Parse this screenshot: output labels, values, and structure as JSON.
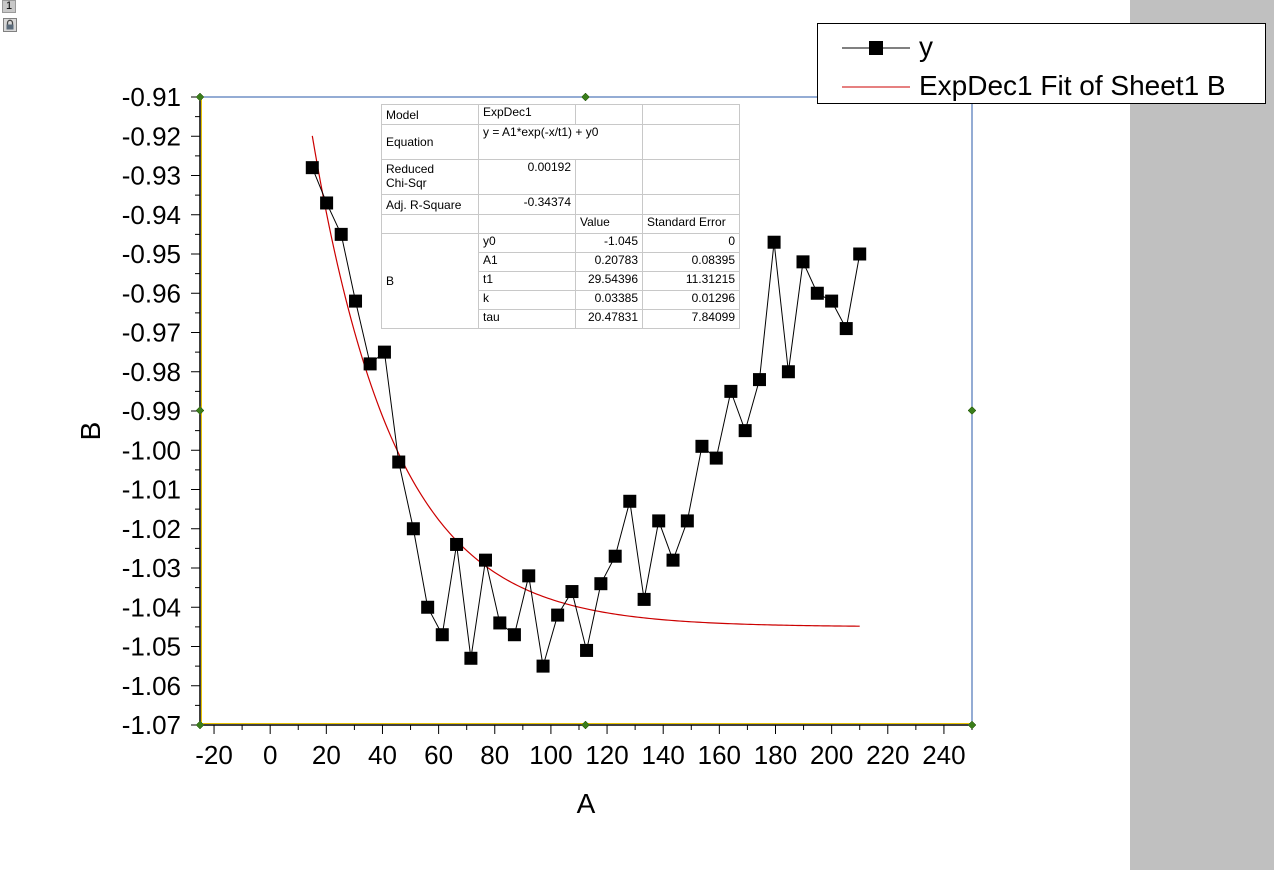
{
  "layer_tab": {
    "label": "1"
  },
  "chart_data": {
    "type": "scatter",
    "xlabel": "A",
    "ylabel": "B",
    "xlim": [
      -25,
      250
    ],
    "ylim": [
      -1.07,
      -0.91
    ],
    "x_ticks": [
      -20,
      0,
      20,
      40,
      60,
      80,
      100,
      120,
      140,
      160,
      180,
      200,
      220,
      240
    ],
    "x_tick_labels": [
      "-20",
      "0",
      "20",
      "40",
      "60",
      "80",
      "100",
      "120",
      "140",
      "160",
      "180",
      "200",
      "220",
      "240"
    ],
    "y_ticks": [
      -0.91,
      -0.92,
      -0.93,
      -0.94,
      -0.95,
      -0.96,
      -0.97,
      -0.98,
      -0.99,
      -1.0,
      -1.01,
      -1.02,
      -1.03,
      -1.04,
      -1.05,
      -1.06,
      -1.07
    ],
    "y_tick_labels": [
      "-0.91",
      "-0.92",
      "-0.93",
      "-0.94",
      "-0.95",
      "-0.96",
      "-0.97",
      "-0.98",
      "-0.99",
      "-1.00",
      "-1.01",
      "-1.02",
      "-1.03",
      "-1.04",
      "-1.05",
      "-1.06",
      "-1.07"
    ],
    "series": [
      {
        "name": "y",
        "type": "line+symbol",
        "color": "#000000",
        "x": [
          15,
          20.1,
          25.3,
          30.4,
          35.6,
          40.7,
          45.8,
          51,
          56.1,
          61.3,
          66.4,
          71.5,
          76.7,
          81.8,
          87,
          92.1,
          97.2,
          102.4,
          107.5,
          112.7,
          117.8,
          122.9,
          128.1,
          133.2,
          138.4,
          143.5,
          148.6,
          153.8,
          158.9,
          164.1,
          169.2,
          174.3,
          179.5,
          184.6,
          189.8,
          194.9,
          200,
          205.2,
          210
        ],
        "y": [
          -0.928,
          -0.937,
          -0.945,
          -0.962,
          -0.978,
          -0.975,
          -1.003,
          -1.02,
          -1.04,
          -1.047,
          -1.024,
          -1.053,
          -1.028,
          -1.044,
          -1.047,
          -1.032,
          -1.055,
          -1.042,
          -1.036,
          -1.051,
          -1.034,
          -1.027,
          -1.013,
          -1.038,
          -1.018,
          -1.028,
          -1.018,
          -0.999,
          -1.002,
          -0.985,
          -0.995,
          -0.982,
          -0.947,
          -0.98,
          -0.952,
          -0.96,
          -0.962,
          -0.969,
          -0.95
        ]
      },
      {
        "name": "ExpDec1 Fit of Sheet1 B",
        "type": "fit",
        "color": "#cc0000",
        "model": {
          "y0": -1.045,
          "A1": 0.20783,
          "t1": 29.54396
        },
        "x_range": [
          15,
          210
        ]
      }
    ],
    "legend": {
      "position": "top-right",
      "entries": [
        "y",
        "ExpDec1 Fit of Sheet1 B"
      ]
    }
  },
  "fit_table": {
    "model_label": "Model",
    "model_value": "ExpDec1",
    "equation_label": "Equation",
    "equation_value": "y = A1*exp(-x/t1) + y0",
    "chisq_label_1": "Reduced",
    "chisq_label_2": "Chi-Sqr",
    "chisq_value": "0.00192",
    "adjr2_label": "Adj. R-Square",
    "adjr2_value": "-0.34374",
    "col_value": "Value",
    "col_error": "Standard Error",
    "group_label": "B",
    "params": [
      {
        "name": "y0",
        "value": "-1.045",
        "error": "0"
      },
      {
        "name": "A1",
        "value": "0.20783",
        "error": "0.08395"
      },
      {
        "name": "t1",
        "value": "29.54396",
        "error": "11.31215"
      },
      {
        "name": "k",
        "value": "0.03385",
        "error": "0.01296"
      },
      {
        "name": "tau",
        "value": "20.47831",
        "error": "7.84099"
      }
    ]
  }
}
